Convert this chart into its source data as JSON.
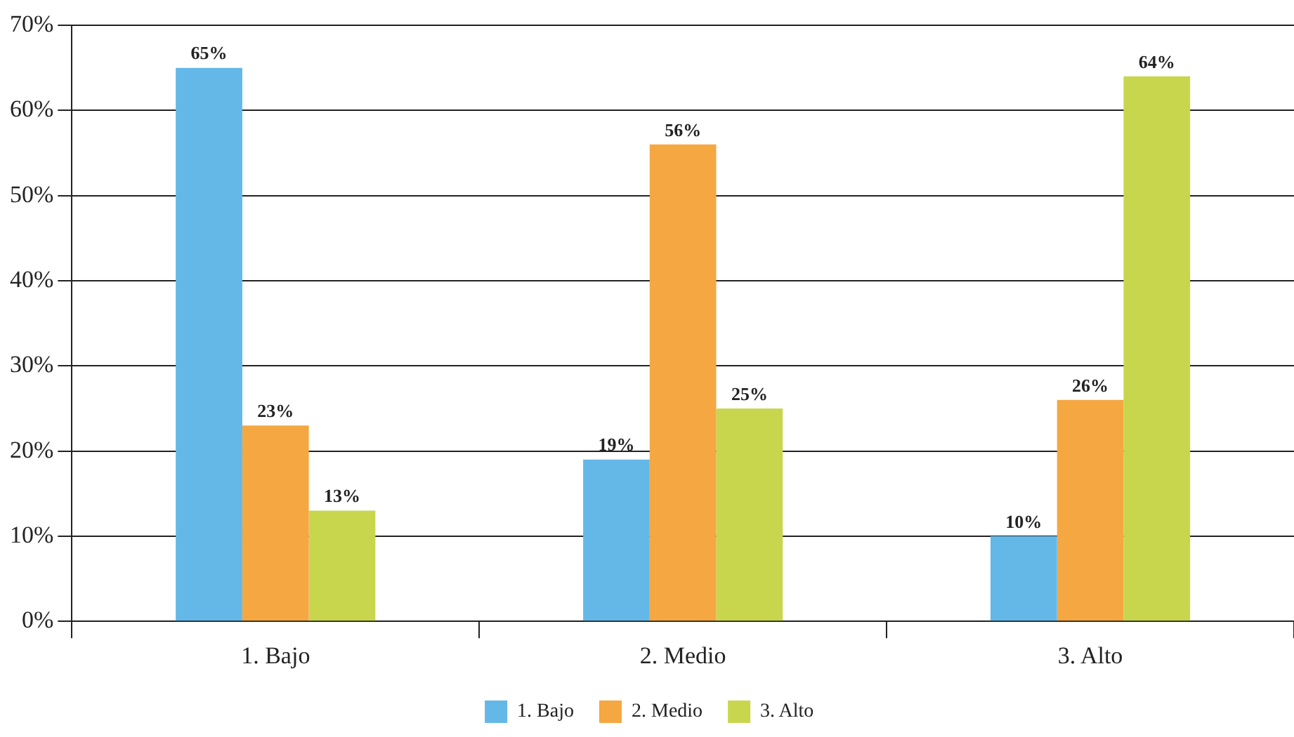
{
  "chart_data": {
    "type": "bar",
    "categories": [
      "1. Bajo",
      "2. Medio",
      "3. Alto"
    ],
    "series": [
      {
        "name": "1. Bajo",
        "color": "#63b8e8",
        "values": [
          65,
          19,
          10
        ],
        "value_labels": [
          "65%",
          "19%",
          "10%"
        ]
      },
      {
        "name": "2. Medio",
        "color": "#f5a742",
        "values": [
          23,
          56,
          26
        ],
        "value_labels": [
          "23%",
          "56%",
          "26%"
        ]
      },
      {
        "name": "3. Alto",
        "color": "#c8d64e",
        "values": [
          13,
          25,
          64
        ],
        "value_labels": [
          "13%",
          "25%",
          "64%"
        ]
      }
    ],
    "ylim": [
      0,
      70
    ],
    "yticks": [
      {
        "value": 0,
        "label": "0%"
      },
      {
        "value": 10,
        "label": "10%"
      },
      {
        "value": 20,
        "label": "20%"
      },
      {
        "value": 30,
        "label": "30%"
      },
      {
        "value": 40,
        "label": "40%"
      },
      {
        "value": 50,
        "label": "50%"
      },
      {
        "value": 60,
        "label": "60%"
      },
      {
        "value": 70,
        "label": "70%"
      }
    ],
    "grid": "y",
    "legend": "bottom"
  }
}
